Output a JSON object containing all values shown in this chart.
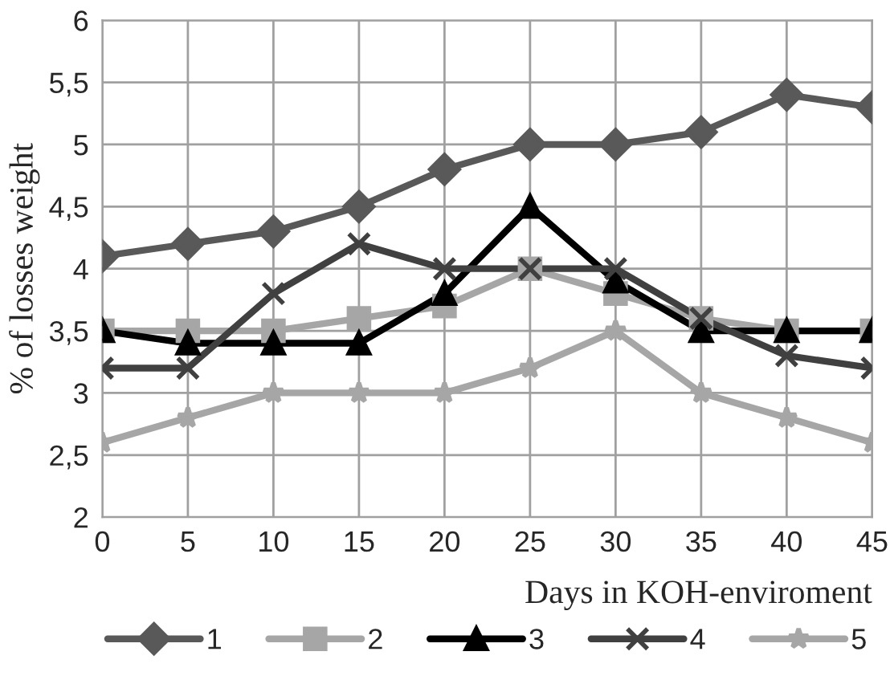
{
  "chart_data": {
    "type": "line",
    "xlabel": "Days in KOH-enviroment",
    "ylabel": "% of losses weight",
    "x": [
      0,
      5,
      10,
      15,
      20,
      25,
      30,
      35,
      40,
      45
    ],
    "xlim": [
      0,
      45
    ],
    "xticks": [
      0,
      5,
      10,
      15,
      20,
      25,
      30,
      35,
      40,
      45
    ],
    "ylim": [
      2,
      6
    ],
    "yticks": [
      2,
      {
        "value": 2.5,
        "label": "2,5"
      },
      3,
      {
        "value": 3.5,
        "label": "3,5"
      },
      4,
      {
        "value": 4.5,
        "label": "4,5"
      },
      5,
      {
        "value": 5.5,
        "label": "5,5"
      },
      6
    ],
    "grid": true,
    "legend": "bottom",
    "series": [
      {
        "name": "1",
        "color": "#595959",
        "marker": "diamond",
        "values": [
          4.1,
          4.2,
          4.3,
          4.5,
          4.8,
          5.0,
          5.0,
          5.1,
          5.4,
          5.3
        ]
      },
      {
        "name": "2",
        "color": "#a6a6a6",
        "marker": "square",
        "values": [
          3.5,
          3.5,
          3.5,
          3.6,
          3.7,
          4.0,
          3.8,
          3.6,
          3.5,
          3.5
        ]
      },
      {
        "name": "3",
        "color": "#000000",
        "marker": "triangle",
        "values": [
          3.5,
          3.4,
          3.4,
          3.4,
          3.8,
          4.5,
          3.9,
          3.5,
          3.5,
          3.5
        ]
      },
      {
        "name": "4",
        "color": "#404040",
        "marker": "cross",
        "values": [
          3.2,
          3.2,
          3.8,
          4.2,
          4.0,
          4.0,
          4.0,
          3.6,
          3.3,
          3.2
        ]
      },
      {
        "name": "5",
        "color": "#a6a6a6",
        "marker": "star",
        "values": [
          2.6,
          2.8,
          3.0,
          3.0,
          3.0,
          3.2,
          3.5,
          3.0,
          2.8,
          2.6
        ]
      }
    ]
  }
}
